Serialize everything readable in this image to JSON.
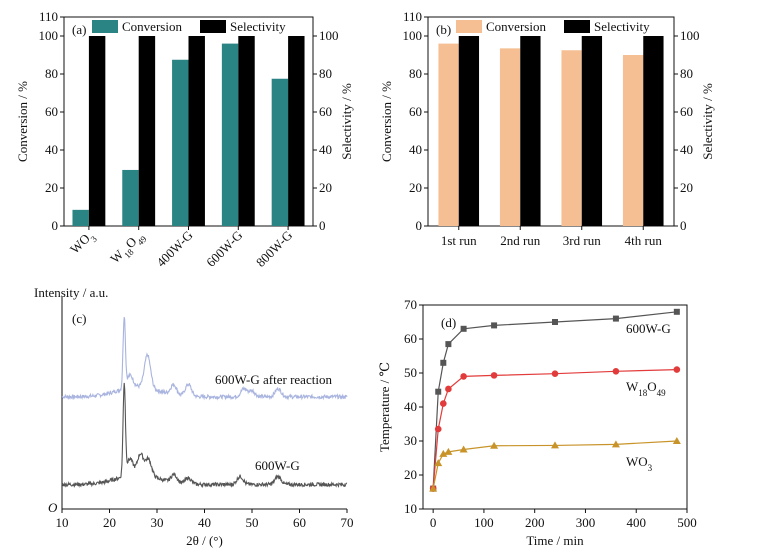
{
  "chart_data": [
    {
      "panel": "(a)",
      "type": "bar",
      "categories": [
        "WO3",
        "W18O49",
        "400W-G",
        "600W-G",
        "800W-G"
      ],
      "series": [
        {
          "name": "Conversion",
          "color": "#2b8484",
          "values": [
            8.5,
            29.5,
            87.5,
            96,
            77.5
          ]
        },
        {
          "name": "Selectivity",
          "color": "#000000",
          "values": [
            100,
            100,
            100,
            100,
            100
          ]
        }
      ],
      "ylabel": "Conversion / %",
      "y2label": "Selectivity / %",
      "ylim": [
        0,
        110
      ],
      "yticks": [
        0,
        20,
        40,
        60,
        80,
        100,
        110
      ],
      "y2ticks": [
        0,
        20,
        40,
        60,
        80,
        100
      ],
      "legend_position": "top"
    },
    {
      "panel": "(b)",
      "type": "bar",
      "categories": [
        "1st run",
        "2nd run",
        "3rd run",
        "4th run"
      ],
      "series": [
        {
          "name": "Conversion",
          "color": "#f5bf93",
          "values": [
            96,
            93.5,
            92.5,
            90
          ]
        },
        {
          "name": "Selectivity",
          "color": "#000000",
          "values": [
            100,
            100,
            100,
            100
          ]
        }
      ],
      "ylabel": "Conversion / %",
      "y2label": "Selectivity / %",
      "ylim": [
        0,
        110
      ],
      "yticks": [
        0,
        20,
        40,
        60,
        80,
        100,
        110
      ],
      "y2ticks": [
        0,
        20,
        40,
        60,
        80,
        100
      ],
      "legend_position": "top"
    },
    {
      "panel": "(c)",
      "type": "line",
      "xlabel": "2θ / (°)",
      "ylabel": "Intensity / a.u.",
      "xlim": [
        10,
        70
      ],
      "xticks": [
        10,
        20,
        30,
        40,
        50,
        60,
        70
      ],
      "origin_label": "O",
      "series": [
        {
          "name": "600W-G after reaction",
          "color": "#a9b4df",
          "baseline": 0.55,
          "peaks": [
            [
              23.1,
              0.35
            ],
            [
              24.3,
              0.06
            ],
            [
              28.0,
              0.16
            ],
            [
              33.5,
              0.05
            ],
            [
              36.6,
              0.06
            ],
            [
              48.3,
              0.04
            ],
            [
              50.0,
              0.03
            ],
            [
              55.5,
              0.04
            ]
          ]
        },
        {
          "name": "600W-G",
          "color": "#555555",
          "baseline": 0.12,
          "peaks": [
            [
              23.1,
              0.45
            ],
            [
              24.3,
              0.08
            ],
            [
              26.5,
              0.1
            ],
            [
              28.2,
              0.08
            ],
            [
              33.6,
              0.04
            ],
            [
              36.6,
              0.03
            ],
            [
              47.5,
              0.04
            ],
            [
              55.5,
              0.04
            ]
          ]
        }
      ]
    },
    {
      "panel": "(d)",
      "type": "line",
      "xlabel": "Time / min",
      "ylabel": "Temperature / ℃",
      "xlim": [
        -20,
        500
      ],
      "ylim": [
        10,
        70
      ],
      "xticks": [
        0,
        100,
        200,
        300,
        400,
        500
      ],
      "yticks": [
        10,
        20,
        30,
        40,
        50,
        60,
        70
      ],
      "series": [
        {
          "name": "600W-G",
          "color": "#555555",
          "marker": "square",
          "x": [
            0,
            10,
            20,
            30,
            60,
            120,
            240,
            360,
            480
          ],
          "y": [
            16,
            44.5,
            53,
            58.5,
            63,
            64,
            65,
            66,
            68
          ]
        },
        {
          "name": "W18O49",
          "color": "#e23b3b",
          "marker": "circle",
          "x": [
            0,
            10,
            20,
            30,
            60,
            120,
            240,
            360,
            480
          ],
          "y": [
            16,
            33.5,
            41,
            45.3,
            49,
            49.3,
            49.8,
            50.5,
            51
          ]
        },
        {
          "name": "WO3",
          "color": "#c8942a",
          "marker": "triangle",
          "x": [
            0,
            10,
            20,
            30,
            60,
            120,
            240,
            360,
            480
          ],
          "y": [
            16,
            23.5,
            26.2,
            26.8,
            27.5,
            28.6,
            28.7,
            29,
            30
          ]
        }
      ]
    }
  ]
}
